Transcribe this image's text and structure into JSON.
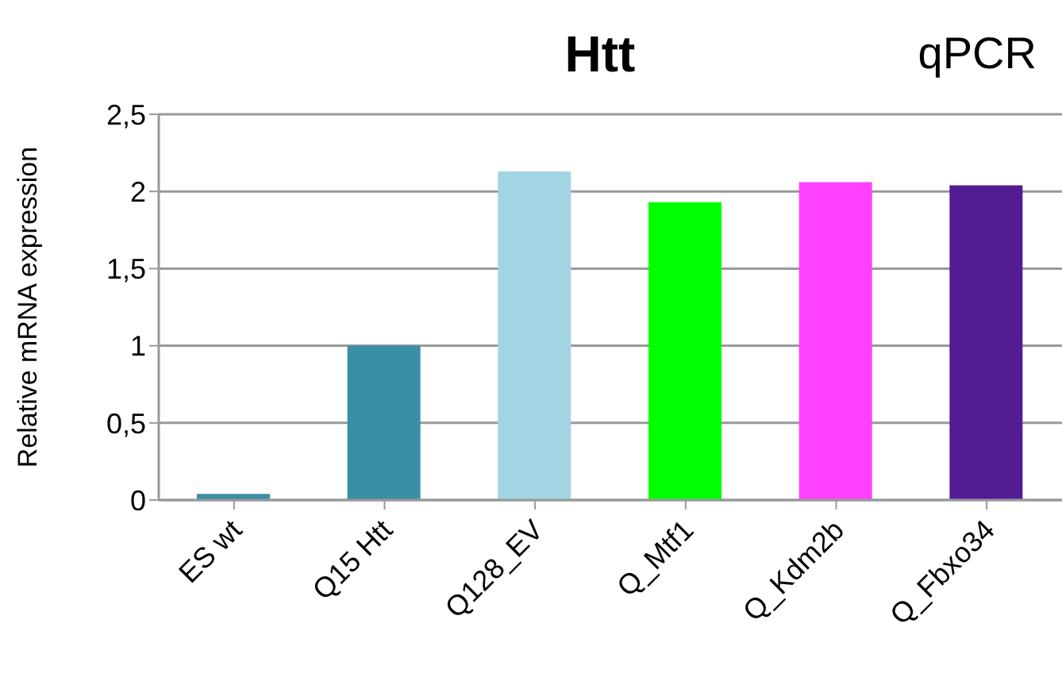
{
  "chart_data": {
    "type": "bar",
    "title": "Htt",
    "ylabel": "Relative mRNA expression",
    "annotations": [
      "qPCR"
    ],
    "categories": [
      "ES wt",
      "Q15 Htt",
      "Q128_EV",
      "Q_Mtf1",
      "Q_Kdm2b",
      "Q_Fbxo34"
    ],
    "values": [
      0.04,
      1.0,
      2.13,
      1.93,
      2.06,
      2.04
    ],
    "colors": [
      "#3a8fa6",
      "#3a8fa6",
      "#a3d4e3",
      "#00ff00",
      "#ff40ff",
      "#521c92"
    ],
    "ylim": [
      0,
      2.5
    ],
    "yticks": [
      0,
      {
        "value": 0.5,
        "label": "0,5"
      },
      1,
      {
        "value": 1.5,
        "label": "1,5"
      },
      2,
      {
        "value": 2.5,
        "label": "2,5"
      }
    ],
    "grid": "y",
    "legend": false
  }
}
